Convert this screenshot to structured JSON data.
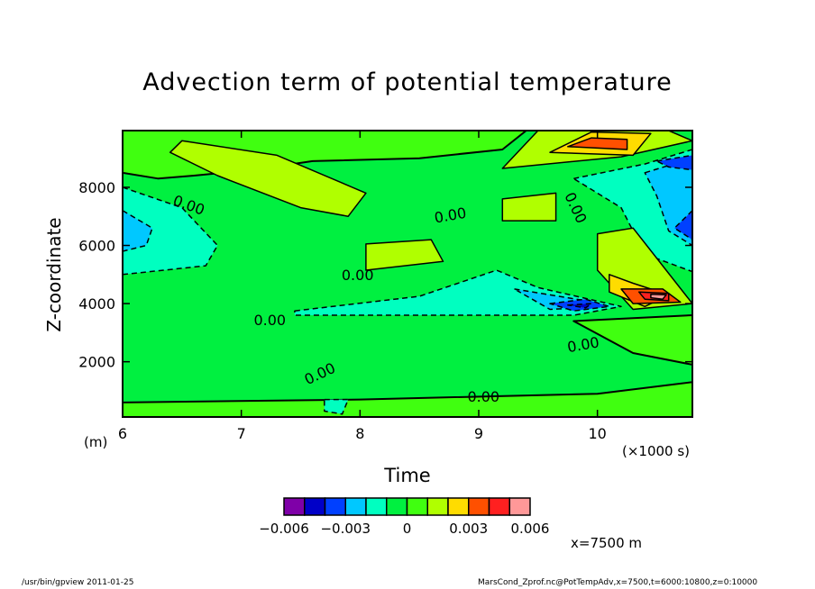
{
  "chart_data": {
    "type": "heatmap",
    "subtype": "filled-contour",
    "title": "Advection term of potential temperature",
    "xlabel": "Time",
    "ylabel": "Z-coordinate",
    "x_unit": "(×1000 s)",
    "y_unit": "(m)",
    "xlim": [
      6,
      10.8
    ],
    "ylim": [
      100,
      9950
    ],
    "xticks": [
      6,
      7,
      8,
      9,
      10
    ],
    "yticks": [
      2000,
      4000,
      6000,
      8000
    ],
    "colorbar": {
      "levels": [
        -0.006,
        -0.005,
        -0.004,
        -0.003,
        -0.002,
        -0.001,
        0,
        0.001,
        0.002,
        0.003,
        0.004,
        0.005,
        0.006
      ],
      "colors": [
        "#7f00a8",
        "#0000c8",
        "#0040ff",
        "#00c8ff",
        "#00ffc0",
        "#00f040",
        "#40ff10",
        "#b0ff00",
        "#ffdc00",
        "#ff5000",
        "#ff2020",
        "#ff9898"
      ],
      "tick_labels": [
        "−0.006",
        "−0.003",
        "0",
        "0.003",
        "0.006"
      ],
      "tick_values": [
        -0.006,
        -0.003,
        0,
        0.003,
        0.006
      ]
    },
    "background_level": 5,
    "regions": [
      {
        "level": 6,
        "pts": [
          [
            6,
            9950
          ],
          [
            9.4,
            9950
          ],
          [
            9.2,
            9300
          ],
          [
            8.5,
            9000
          ],
          [
            7.6,
            8900
          ],
          [
            7.1,
            8600
          ],
          [
            6.6,
            8400
          ],
          [
            6.3,
            8300
          ],
          [
            6,
            8500
          ]
        ]
      },
      {
        "level": 6,
        "pts": [
          [
            6,
            100
          ],
          [
            10.8,
            100
          ],
          [
            10.8,
            1300
          ],
          [
            10,
            900
          ],
          [
            8,
            700
          ],
          [
            6,
            600
          ]
        ]
      },
      {
        "level": 6,
        "pts": [
          [
            9.8,
            3400
          ],
          [
            10.8,
            3600
          ],
          [
            10.8,
            1900
          ],
          [
            10.3,
            2300
          ]
        ]
      },
      {
        "level": 7,
        "pts": [
          [
            6.5,
            9600
          ],
          [
            7.3,
            9100
          ],
          [
            8.05,
            7800
          ],
          [
            7.9,
            7000
          ],
          [
            7.5,
            7300
          ],
          [
            6.8,
            8400
          ],
          [
            6.4,
            9200
          ]
        ]
      },
      {
        "level": 4,
        "pts": [
          [
            6,
            8000
          ],
          [
            6.5,
            7300
          ],
          [
            6.8,
            6000
          ],
          [
            6.7,
            5300
          ],
          [
            6,
            5000
          ]
        ]
      },
      {
        "level": 3,
        "pts": [
          [
            6,
            7200
          ],
          [
            6.25,
            6600
          ],
          [
            6.2,
            6000
          ],
          [
            6,
            5800
          ]
        ]
      },
      {
        "level": 7,
        "pts": [
          [
            9.2,
            8650
          ],
          [
            9.5,
            9950
          ],
          [
            10.6,
            9950
          ],
          [
            10.8,
            9600
          ],
          [
            10.2,
            9050
          ]
        ]
      },
      {
        "level": 8,
        "pts": [
          [
            9.6,
            9200
          ],
          [
            9.95,
            9900
          ],
          [
            10.45,
            9850
          ],
          [
            10.3,
            9100
          ]
        ]
      },
      {
        "level": 9,
        "pts": [
          [
            9.75,
            9400
          ],
          [
            9.95,
            9700
          ],
          [
            10.25,
            9650
          ],
          [
            10.25,
            9300
          ]
        ]
      },
      {
        "level": 4,
        "pts": [
          [
            9.8,
            8300
          ],
          [
            10.4,
            8800
          ],
          [
            10.8,
            9300
          ],
          [
            10.8,
            5100
          ],
          [
            10.4,
            5700
          ],
          [
            10.2,
            7300
          ]
        ]
      },
      {
        "level": 3,
        "pts": [
          [
            10.4,
            8500
          ],
          [
            10.8,
            9000
          ],
          [
            10.8,
            6000
          ],
          [
            10.6,
            6500
          ],
          [
            10.5,
            7700
          ]
        ]
      },
      {
        "level": 2,
        "pts": [
          [
            10.5,
            8900
          ],
          [
            10.8,
            9100
          ],
          [
            10.8,
            8600
          ],
          [
            10.6,
            8700
          ]
        ]
      },
      {
        "level": 2,
        "pts": [
          [
            10.8,
            7200
          ],
          [
            10.65,
            6600
          ],
          [
            10.8,
            6200
          ]
        ]
      },
      {
        "level": 7,
        "pts": [
          [
            8.05,
            6050
          ],
          [
            8.6,
            6200
          ],
          [
            8.7,
            5450
          ],
          [
            8.05,
            5150
          ]
        ]
      },
      {
        "level": 7,
        "pts": [
          [
            9.2,
            7600
          ],
          [
            9.65,
            7800
          ],
          [
            9.65,
            6850
          ],
          [
            9.2,
            6850
          ]
        ]
      },
      {
        "level": 4,
        "pts": [
          [
            7.45,
            3750
          ],
          [
            8.5,
            4250
          ],
          [
            9.15,
            5150
          ],
          [
            9.5,
            4550
          ],
          [
            10.2,
            3900
          ],
          [
            9.8,
            3600
          ],
          [
            8.75,
            3600
          ],
          [
            7.45,
            3600
          ]
        ]
      },
      {
        "level": 3,
        "pts": [
          [
            9.3,
            4500
          ],
          [
            9.9,
            4100
          ],
          [
            10.1,
            3900
          ],
          [
            9.6,
            3800
          ]
        ]
      },
      {
        "level": 2,
        "pts": [
          [
            9.6,
            4000
          ],
          [
            9.9,
            4150
          ],
          [
            10.1,
            3900
          ],
          [
            9.8,
            3750
          ]
        ]
      },
      {
        "level": 1,
        "pts": [
          [
            9.75,
            3950
          ],
          [
            9.95,
            4000
          ],
          [
            9.9,
            3850
          ]
        ]
      },
      {
        "level": 7,
        "pts": [
          [
            10,
            6400
          ],
          [
            10.3,
            6600
          ],
          [
            10.8,
            4000
          ],
          [
            10.3,
            3800
          ],
          [
            10,
            5150
          ]
        ]
      },
      {
        "level": 8,
        "pts": [
          [
            10.1,
            5000
          ],
          [
            10.3,
            4700
          ],
          [
            10.6,
            4300
          ],
          [
            10.4,
            3900
          ],
          [
            10.1,
            4400
          ]
        ]
      },
      {
        "level": 9,
        "pts": [
          [
            10.2,
            4500
          ],
          [
            10.55,
            4500
          ],
          [
            10.7,
            4050
          ],
          [
            10.3,
            4000
          ]
        ]
      },
      {
        "level": 10,
        "pts": [
          [
            10.35,
            4400
          ],
          [
            10.6,
            4350
          ],
          [
            10.6,
            4100
          ],
          [
            10.4,
            4150
          ]
        ]
      },
      {
        "level": 11,
        "pts": [
          [
            10.45,
            4320
          ],
          [
            10.58,
            4300
          ],
          [
            10.55,
            4150
          ],
          [
            10.45,
            4200
          ]
        ]
      },
      {
        "level": 4,
        "pts": [
          [
            7.7,
            700
          ],
          [
            7.9,
            700
          ],
          [
            7.85,
            200
          ],
          [
            7.7,
            300
          ]
        ]
      }
    ],
    "contour_labels": [
      {
        "text": "0.00",
        "t": 6.56,
        "z": 7400,
        "rot": 20
      },
      {
        "text": "0.00",
        "t": 8.76,
        "z": 7050,
        "rot": -10
      },
      {
        "text": "0.00",
        "t": 7.98,
        "z": 5000,
        "rot": 0
      },
      {
        "text": "0.00",
        "t": 7.24,
        "z": 3450,
        "rot": 0
      },
      {
        "text": "0.00",
        "t": 7.66,
        "z": 1600,
        "rot": -25
      },
      {
        "text": "0.00",
        "t": 9.04,
        "z": 820,
        "rot": 0
      },
      {
        "text": "0.00",
        "t": 9.88,
        "z": 2600,
        "rot": -10
      },
      {
        "text": "0.00",
        "t": 9.82,
        "z": 7300,
        "rot": 65
      }
    ],
    "annotation": "x=7500 m"
  },
  "footer": {
    "left": "/usr/bin/gpview   2011-01-25",
    "right": "MarsCond_Zprof.nc@PotTempAdv,x=7500,t=6000:10800,z=0:10000"
  }
}
